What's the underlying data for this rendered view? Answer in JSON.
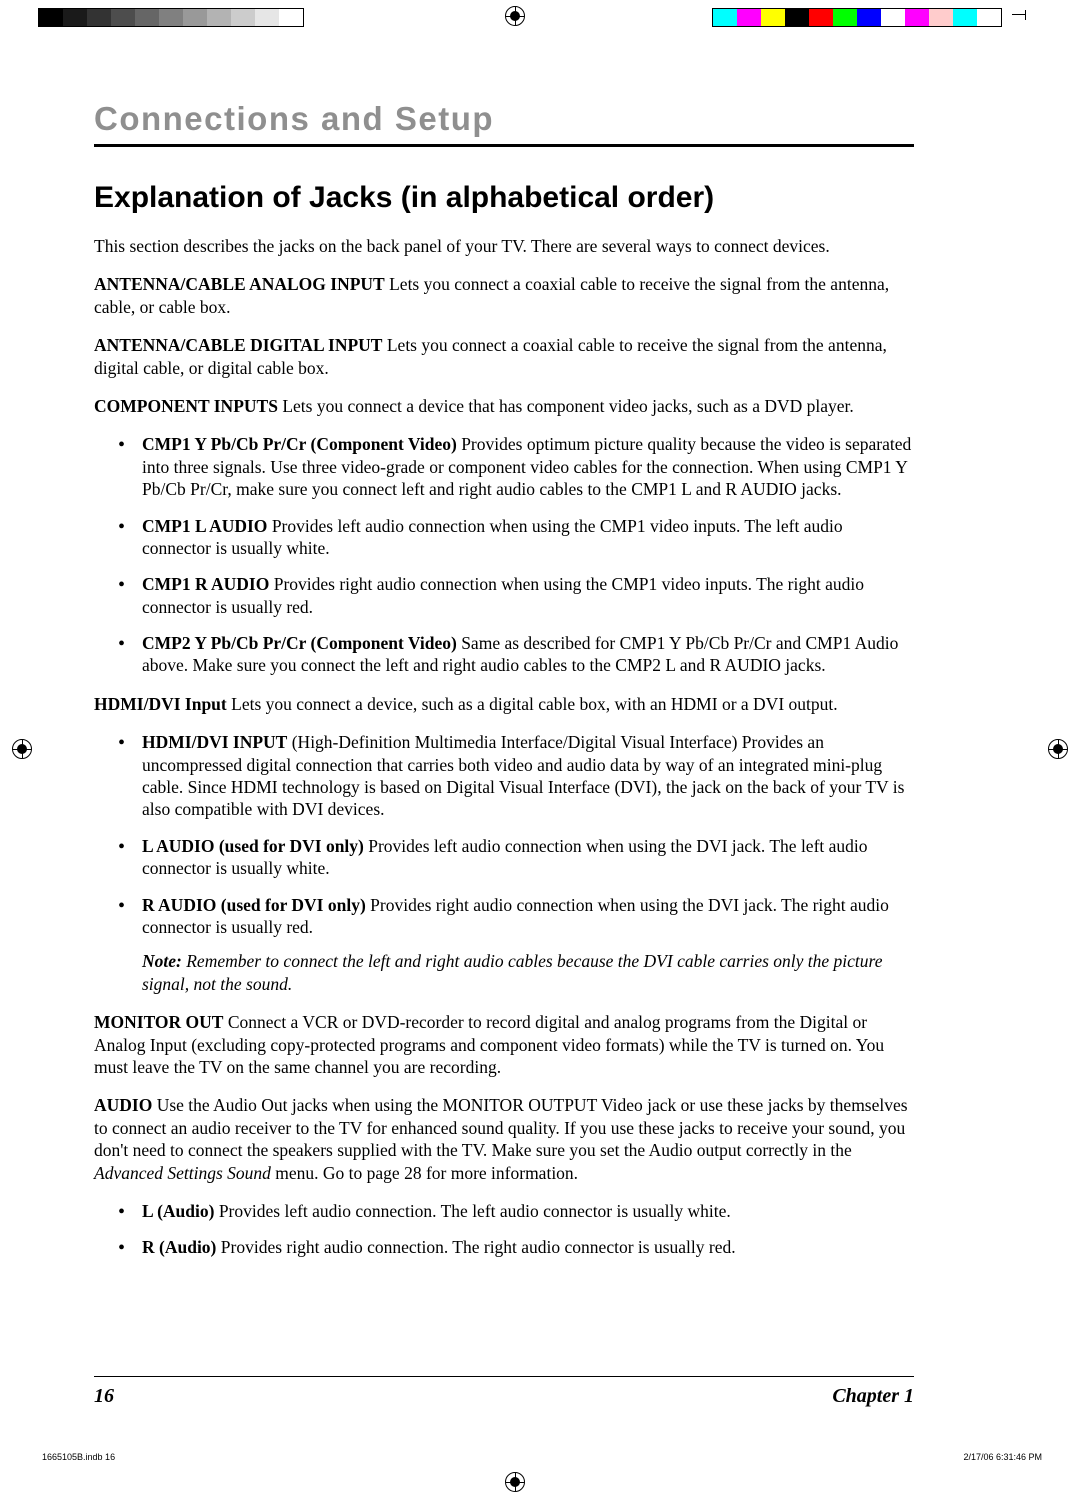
{
  "registration": {
    "grayscale": [
      "#000000",
      "#1a1a1a",
      "#333333",
      "#4d4d4d",
      "#666666",
      "#808080",
      "#999999",
      "#b3b3b3",
      "#cccccc",
      "#e6e6e6",
      "#ffffff"
    ],
    "colorbar": [
      "#00ffff",
      "#ff00ff",
      "#ffff00",
      "#000000",
      "#ff0000",
      "#00ff00",
      "#0000ff",
      "#ffffff",
      "#ff00ff",
      "#ffcccc",
      "#00ffff",
      "#ffffff"
    ]
  },
  "chapter_title": "Connections and Setup",
  "heading": "Explanation of Jacks (in alphabetical order)",
  "intro": "This section describes the jacks on the back panel of your TV. There are several ways to connect devices.",
  "antenna_analog": {
    "label": "ANTENNA/CABLE ANALOG INPUT",
    "text": "   Lets you connect a coaxial cable to receive the signal from the antenna, cable, or cable box."
  },
  "antenna_digital": {
    "label": "ANTENNA/CABLE DIGITAL INPUT",
    "text": "   Lets you connect a coaxial cable to receive the signal from the antenna, digital cable, or digital cable box."
  },
  "component": {
    "label": "COMPONENT INPUTS",
    "text": "   Lets you connect a device that has component video jacks, such as a DVD player."
  },
  "cmp_items": [
    {
      "label": "CMP1 Y Pb/Cb Pr/Cr (Component Video)",
      "text": "   Provides optimum picture quality because the video is separated into three signals. Use three video-grade or component video cables for the connection. When using CMP1 Y Pb/Cb Pr/Cr, make sure you connect left and right audio cables to the CMP1 L and R AUDIO jacks."
    },
    {
      "label": "CMP1 L AUDIO",
      "text": "   Provides left audio connection when using the CMP1 video inputs. The left audio connector is usually white."
    },
    {
      "label": "CMP1 R AUDIO",
      "text": "   Provides right audio connection when using the CMP1 video inputs. The right audio connector is usually red."
    },
    {
      "label": "CMP2 Y Pb/Cb Pr/Cr (Component Video)",
      "text": "   Same as described for CMP1 Y Pb/Cb Pr/Cr and CMP1 Audio above. Make sure you connect the left and right audio cables to the CMP2 L and R AUDIO jacks."
    }
  ],
  "hdmi": {
    "label": "HDMI/DVI Input",
    "text": "   Lets you connect a device, such as a digital cable box, with an HDMI or a DVI output."
  },
  "hdmi_items": [
    {
      "label": "HDMI/DVI INPUT",
      "text": " (High-Definition Multimedia Interface/Digital Visual Interface)   Provides an uncompressed digital connection that carries both video and audio data by way of an integrated mini-plug cable. Since HDMI technology is based on Digital Visual Interface (DVI), the jack on the back of your TV is also compatible with DVI devices."
    },
    {
      "label": "L AUDIO (used for DVI only)",
      "text": "   Provides left audio connection when using the DVI jack. The left audio connector is usually white."
    },
    {
      "label": "R AUDIO (used for DVI only)",
      "text": "   Provides right audio connection when using the DVI jack. The right audio connector is usually red."
    }
  ],
  "note": {
    "label": "Note:",
    "text": " Remember to connect the left and right audio cables because the DVI cable carries only the picture signal, not the sound."
  },
  "monitor": {
    "label": "MONITOR OUT",
    "text": "   Connect a VCR or DVD-recorder to record digital and analog programs from the Digital or Analog Input (excluding copy-protected programs and component video formats) while the TV is turned on. You must leave the TV on the same channel you are recording."
  },
  "audio": {
    "label": "AUDIO",
    "text_a": "   Use the Audio Out jacks when using the MONITOR OUTPUT Video jack or use these jacks by themselves to connect an audio receiver to the TV for enhanced sound quality. If you use these jacks to receive your sound, you don't need to connect the speakers supplied with the TV. Make sure you set the Audio output correctly in the ",
    "menu": "Advanced Settings Sound",
    "text_b": " menu. Go to page 28 for more information."
  },
  "audio_items": [
    {
      "label": "L (Audio)",
      "text": "   Provides left audio connection. The left audio connector is usually white."
    },
    {
      "label": "R (Audio)",
      "text": "   Provides right audio connection. The right audio connector is usually red."
    }
  ],
  "footer": {
    "page": "16",
    "chapter": "Chapter 1"
  },
  "imprint": {
    "file": "1665105B.indb   16",
    "date": "2/17/06   6:31:46 PM"
  }
}
